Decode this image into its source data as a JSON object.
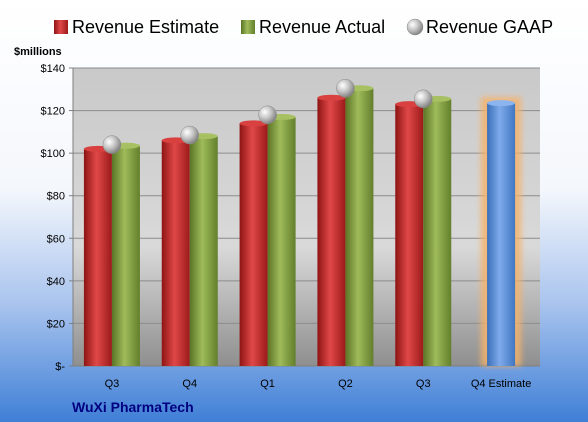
{
  "chart_data": {
    "type": "bar",
    "unit_label": "$millions",
    "company": "WuXi PharmaTech",
    "categories": [
      "Q3",
      "Q4",
      "Q1",
      "Q2",
      "Q3",
      "Q4 Estimate"
    ],
    "series": [
      {
        "name": "Revenue Estimate",
        "kind": "bar",
        "values": [
          102,
          106,
          114,
          126,
          123,
          null
        ]
      },
      {
        "name": "Revenue Actual",
        "kind": "bar",
        "values": [
          103.5,
          108,
          117,
          130.5,
          125.5,
          null
        ]
      },
      {
        "name": "Revenue GAAP",
        "kind": "point",
        "values": [
          104,
          108.5,
          118,
          130.5,
          125.5,
          null
        ]
      },
      {
        "name": "Q4 Estimate",
        "kind": "highlight-bar",
        "values": [
          null,
          null,
          null,
          null,
          null,
          123.5
        ]
      }
    ],
    "y_ticks": [
      {
        "value": 0,
        "label": "$-"
      },
      {
        "value": 20,
        "label": "$20"
      },
      {
        "value": 40,
        "label": "$40"
      },
      {
        "value": 60,
        "label": "$60"
      },
      {
        "value": 80,
        "label": "$80"
      },
      {
        "value": 100,
        "label": "$100"
      },
      {
        "value": 120,
        "label": "$120"
      },
      {
        "value": 140,
        "label": "$140"
      }
    ],
    "ylim": [
      0,
      140
    ],
    "grid": true,
    "legend_position": "top",
    "colors": {
      "estimate": "#c0282a",
      "actual": "#7f9b3d",
      "gaap": "#b8b8b8",
      "highlight": "#5b8fd6",
      "highlight_glow": "#f6b26b"
    }
  }
}
